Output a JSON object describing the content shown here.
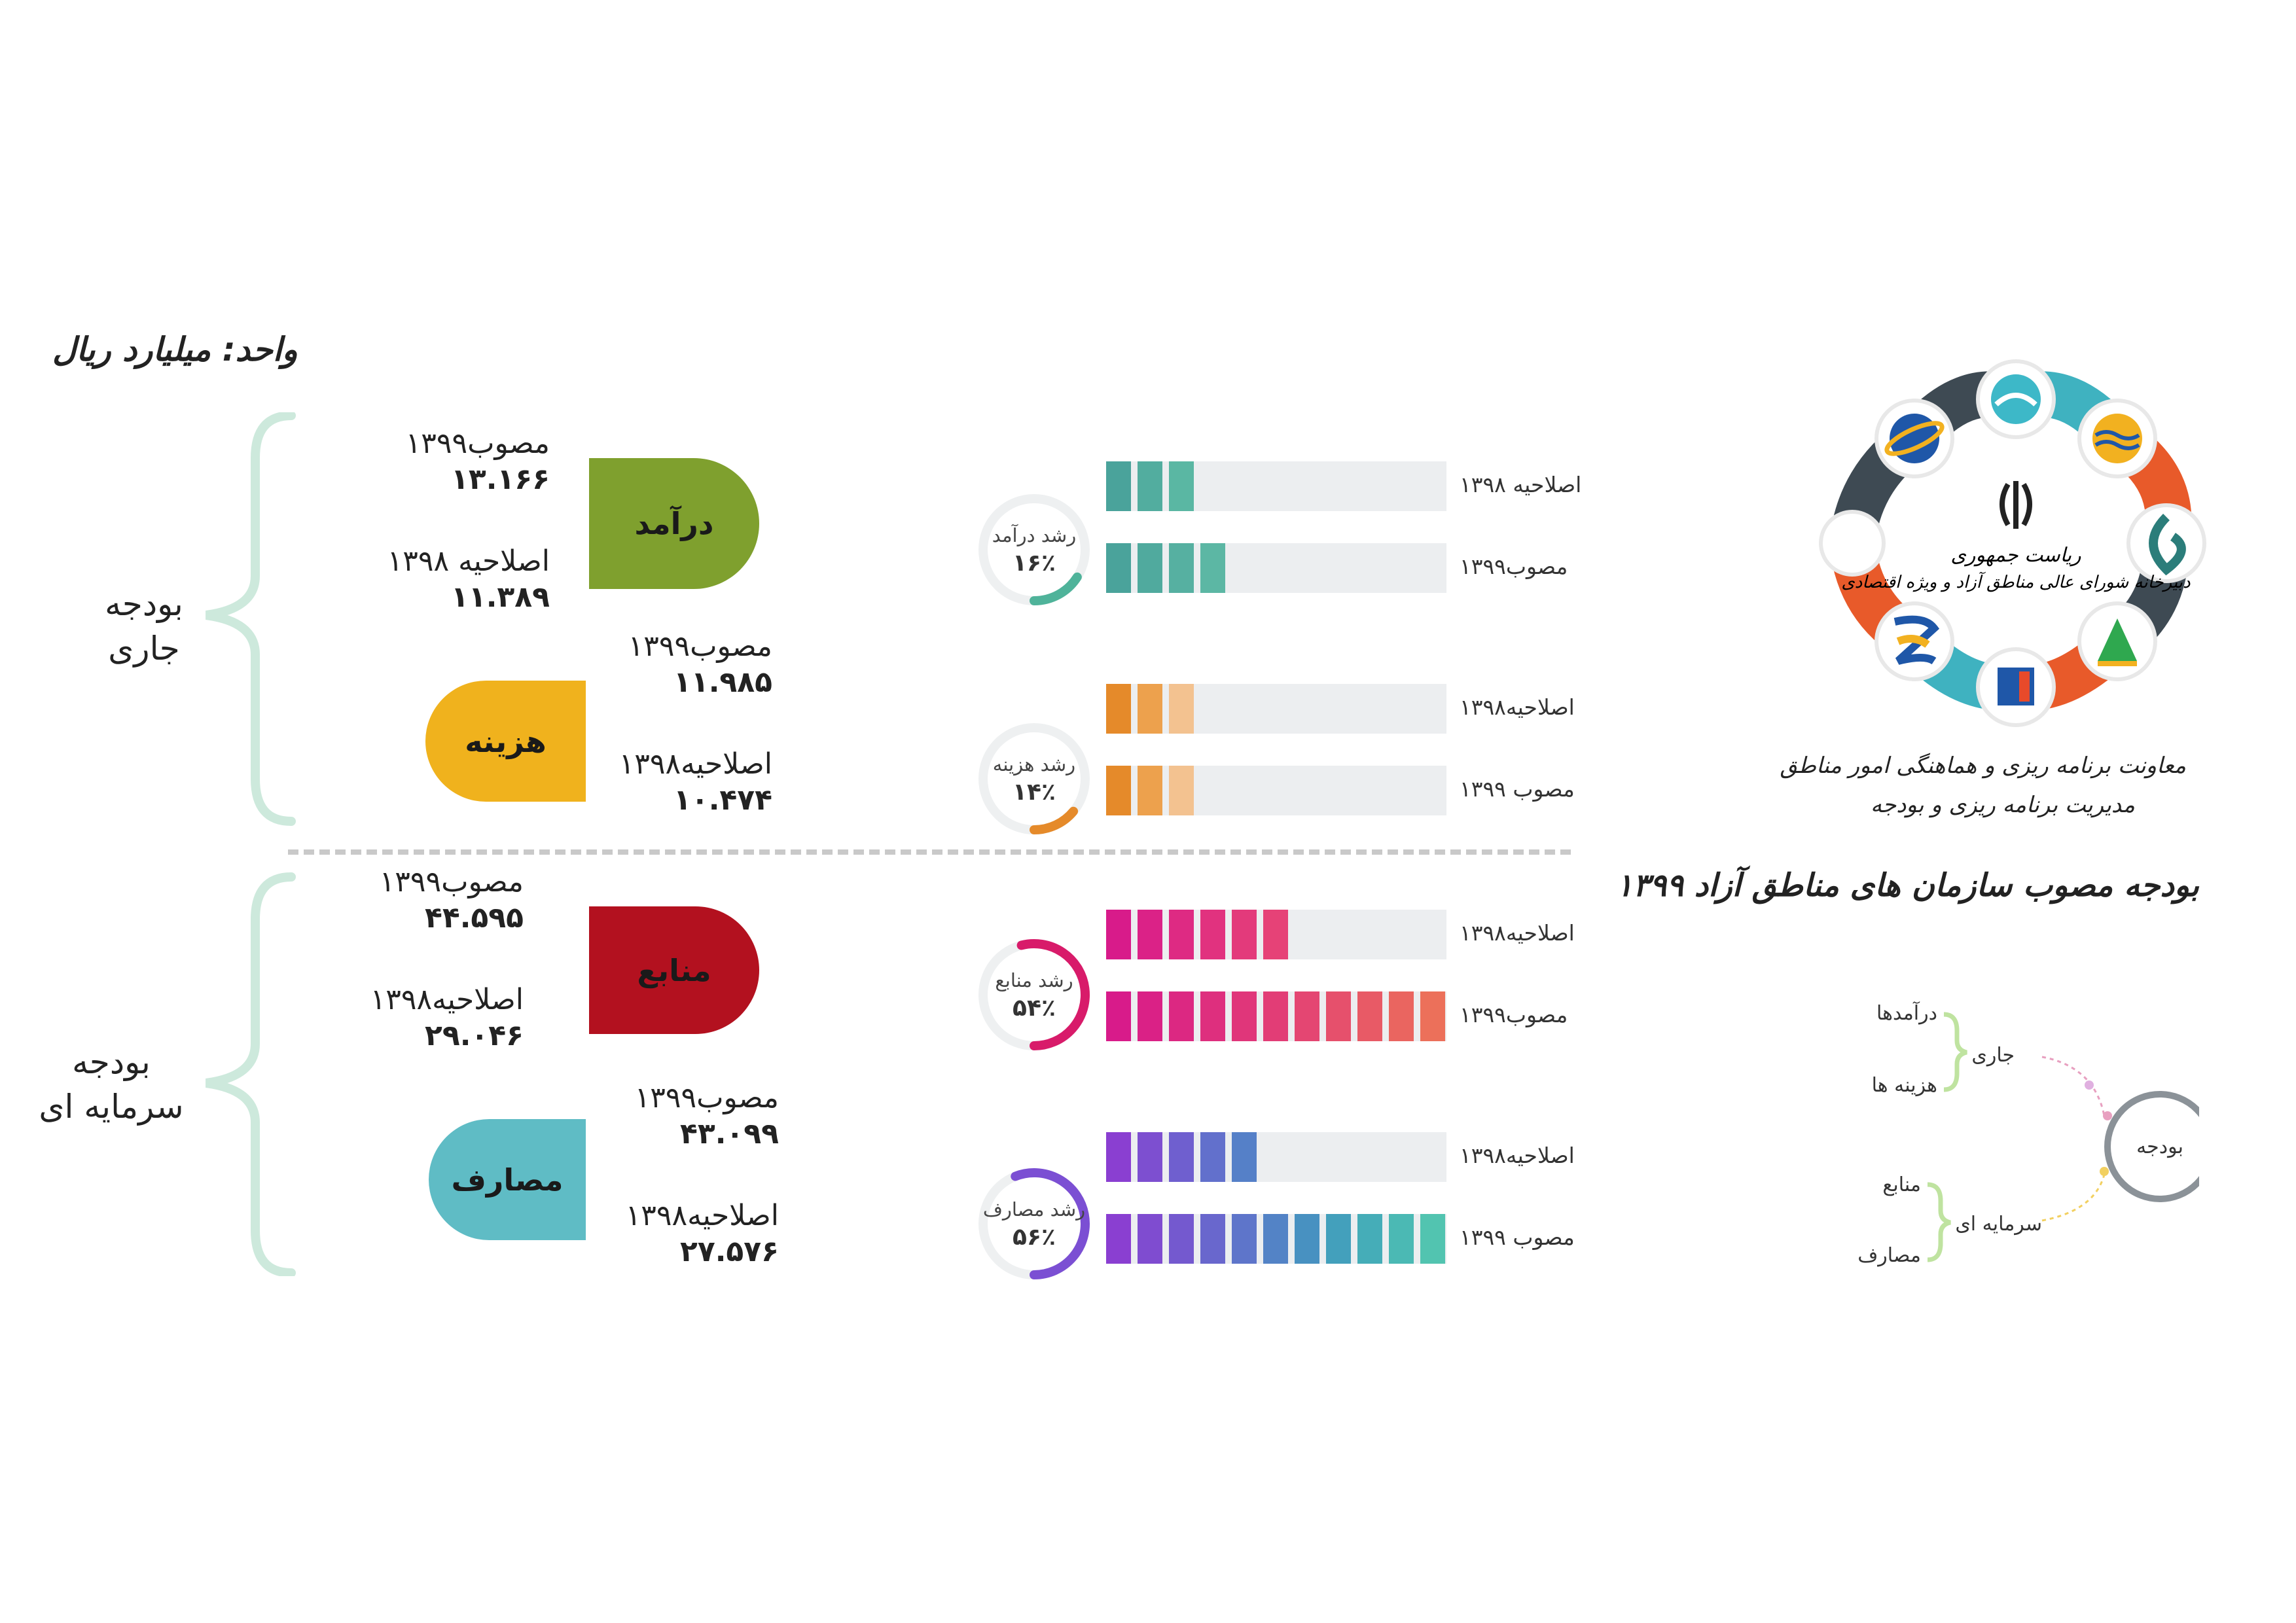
{
  "unit_label": "واحد: میلیارد ریال",
  "sections": {
    "current": {
      "label_l1": "بودجه",
      "label_l2": "جاری"
    },
    "capital": {
      "label_l1": "بودجه",
      "label_l2": "سرمایه ای"
    }
  },
  "colors": {
    "revenue": "#7fa02e",
    "expense": "#f0b21d",
    "resources": "#b3111f",
    "uses": "#5fbcc5",
    "brace": "#cde9dc",
    "track": "#eceef0"
  },
  "blocks": [
    {
      "key": "revenue",
      "title": "درآمد",
      "approved_label": "مصوب۱۳۹۹",
      "approved_value": "۱۳.۱۶۶",
      "amended_label": "اصلاحیه ۱۳۹۸",
      "amended_value": "۱۱.۳۸۹",
      "gauge_title": "رشد درآمد",
      "gauge_value": "۱۶٪"
    },
    {
      "key": "expense",
      "title": "هزینه",
      "approved_label": "مصوب۱۳۹۹",
      "approved_value": "۱۱.۹۸۵",
      "amended_label": "اصلاحیه۱۳۹۸",
      "amended_value": "۱۰.۴۷۴",
      "gauge_title": "رشد هزینه",
      "gauge_value": "۱۴٪"
    },
    {
      "key": "resources",
      "title": "منابع",
      "approved_label": "مصوب۱۳۹۹",
      "approved_value": "۴۴.۵۹۵",
      "amended_label": "اصلاحیه۱۳۹۸",
      "amended_value": "۲۹.۰۴۶",
      "gauge_title": "رشد منابع",
      "gauge_value": "۵۴٪"
    },
    {
      "key": "uses",
      "title": "مصارف",
      "approved_label": "مصوب۱۳۹۹",
      "approved_value": "۴۳.۰۹۹",
      "amended_label": "اصلاحیه۱۳۹۸",
      "amended_value": "۲۷.۵۷۶",
      "gauge_title": "رشد مصارف",
      "gauge_value": "۵۶٪"
    }
  ],
  "chart_data": {
    "type": "bar",
    "unit": "میلیارد ریال",
    "groups": [
      {
        "name": "درآمد",
        "growth_pct": 16,
        "series": [
          {
            "name": "اصلاحیه ۱۳۹۸",
            "value": 11.389,
            "filled_blocks": 3
          },
          {
            "name": "مصوب۱۳۹۹",
            "value": 13.166,
            "filled_blocks": 4
          }
        ]
      },
      {
        "name": "هزینه",
        "growth_pct": 14,
        "series": [
          {
            "name": "اصلاحیه۱۳۹۸",
            "value": 10.474,
            "filled_blocks": 3
          },
          {
            "name": "مصوب ۱۳۹۹",
            "value": 11.985,
            "filled_blocks": 3
          }
        ]
      },
      {
        "name": "منابع",
        "growth_pct": 54,
        "series": [
          {
            "name": "اصلاحیه۱۳۹۸",
            "value": 29.046,
            "filled_blocks": 6
          },
          {
            "name": "مصوب۱۳۹۹",
            "value": 44.595,
            "filled_blocks": 11
          }
        ]
      },
      {
        "name": "مصارف",
        "growth_pct": 56,
        "series": [
          {
            "name": "اصلاحیه۱۳۹۸",
            "value": 27.576,
            "filled_blocks": 5
          },
          {
            "name": "مصوب ۱۳۹۹",
            "value": 43.099,
            "filled_blocks": 11
          }
        ]
      }
    ]
  },
  "bars": [
    {
      "label": "اصلاحیه ۱۳۹۸",
      "filled": 3,
      "colors": [
        "#4aa39b",
        "#52ad9f",
        "#5ab7a3"
      ]
    },
    {
      "label": "مصوب۱۳۹۹",
      "filled": 4,
      "colors": [
        "#4aa39b",
        "#50aa9e",
        "#56b0a1",
        "#5cb7a4"
      ]
    },
    {
      "label": "اصلاحیه۱۳۹۸",
      "filled": 3,
      "colors": [
        "#e58a2a",
        "#eda14d",
        "#f3c290"
      ]
    },
    {
      "label": "مصوب ۱۳۹۹",
      "filled": 3,
      "colors": [
        "#e58a2a",
        "#eda14d",
        "#f3c290"
      ]
    },
    {
      "label": "اصلاحیه۱۳۹۸",
      "filled": 6,
      "colors": [
        "#d81b8a",
        "#db2287",
        "#de2a83",
        "#e1327f",
        "#e33a7b",
        "#e64277"
      ]
    },
    {
      "label": "مصوب۱۳۹۹",
      "filled": 11,
      "colors": [
        "#d81b8a",
        "#da2186",
        "#dc2882",
        "#de2f7e",
        "#e0367a",
        "#e23d76",
        "#e44672",
        "#e6506c",
        "#e85a66",
        "#ea6560",
        "#ec705a"
      ]
    },
    {
      "label": "اصلاحیه۱۳۹۸",
      "filled": 5,
      "colors": [
        "#8a3fd1",
        "#7d4fd0",
        "#6f5fcf",
        "#6270cc",
        "#5580c8"
      ]
    },
    {
      "label": "مصوب ۱۳۹۹",
      "filled": 11,
      "colors": [
        "#8a3fd1",
        "#7f4cd0",
        "#7459cf",
        "#6967cd",
        "#5e75ca",
        "#5383c6",
        "#4891c1",
        "#43a0bc",
        "#45adb8",
        "#4bb9b4",
        "#52c4b0"
      ]
    }
  ],
  "logo": {
    "top_text_1": "ریاست جمهوری",
    "top_text_2": "دبیرخانه شورای عالی مناطق آزاد و ویژه اقتصادی"
  },
  "subtitle_1": "معاونت برنامه ریزی و هماهنگی امور مناطق",
  "subtitle_2": "مدیریت برنامه ریزی و بودجه",
  "main_title": "بودجه مصوب سازمان های مناطق آزاد ۱۳۹۹",
  "diagram": {
    "center": "بودجه",
    "current": "جاری",
    "capital": "سرمایه ای",
    "revenues": "درآمدها",
    "expenses": "هزینه ها",
    "resources": "منابع",
    "uses": "مصارف"
  }
}
